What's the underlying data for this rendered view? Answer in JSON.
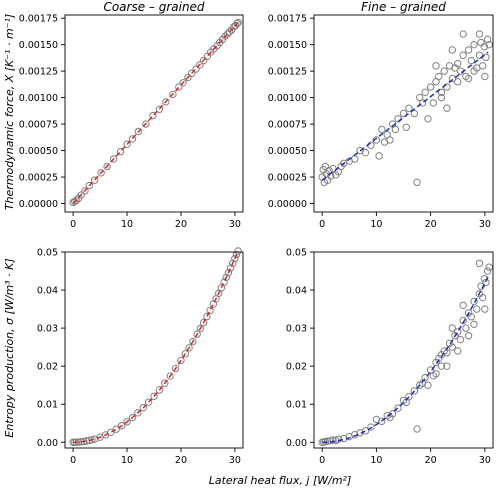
{
  "figure": {
    "ylabel_top": "Thermodynamic force, X [K⁻¹ · m⁻¹]",
    "ylabel_bottom": "Entropy production, σ [W/m³ · K]",
    "xlabel": "Lateral heat flux, j [W/m²]"
  },
  "chart_data": [
    {
      "type": "scatter",
      "title": "Coarse – grained",
      "xlim": [
        -1.5,
        31.5
      ],
      "ylim": [
        -8e-05,
        0.00178
      ],
      "xticks": [
        "0",
        "10",
        "20",
        "30"
      ],
      "xtick_values": [
        0,
        10,
        20,
        30
      ],
      "yticks": [
        "0.00000",
        "0.00025",
        "0.00050",
        "0.00075",
        "0.00100",
        "0.00125",
        "0.00150",
        "0.00175"
      ],
      "ytick_values": [
        0,
        0.00025,
        0.0005,
        0.00075,
        0.001,
        0.00125,
        0.0015,
        0.00175
      ],
      "fit": {
        "type": "linear",
        "color": "#d62728",
        "y_at_0": 0.0,
        "slope": 5.59e-05
      },
      "points_description": "tightly clustered along fit",
      "series": [
        {
          "x": [
            0.0,
            0.3,
            0.6,
            1.0,
            1.5,
            2.2,
            3.0,
            4.0,
            5.2,
            6.3,
            7.5,
            8.8,
            10.0,
            11.0,
            12.1,
            13.5,
            14.8,
            16.0,
            17.2,
            18.5,
            19.6,
            20.4,
            21.3,
            22.0,
            22.8,
            23.5,
            24.2,
            24.9,
            25.5,
            26.1,
            26.7,
            27.2,
            27.7,
            28.2,
            28.6,
            29.0,
            29.4,
            29.8,
            30.1,
            30.4,
            30.6
          ],
          "y": [
            1e-05,
            2e-05,
            3e-05,
            5e-05,
            8e-05,
            0.00012,
            0.00017,
            0.00022,
            0.00029,
            0.00035,
            0.00042,
            0.00049,
            0.00056,
            0.00061,
            0.00068,
            0.00075,
            0.00083,
            0.00089,
            0.00096,
            0.00103,
            0.0011,
            0.00114,
            0.00119,
            0.00123,
            0.00127,
            0.00131,
            0.00135,
            0.00139,
            0.00143,
            0.00146,
            0.00149,
            0.00152,
            0.00155,
            0.00158,
            0.0016,
            0.00162,
            0.00164,
            0.00167,
            0.00168,
            0.0017,
            0.00171
          ]
        }
      ]
    },
    {
      "type": "scatter",
      "title": "Fine – grained",
      "xlim": [
        -1.5,
        31.5
      ],
      "ylim": [
        -8e-05,
        0.00178
      ],
      "xticks": [
        "0",
        "10",
        "20",
        "30"
      ],
      "xtick_values": [
        0,
        10,
        20,
        30
      ],
      "yticks": [
        "0.00000",
        "0.00025",
        "0.00050",
        "0.00075",
        "0.00100",
        "0.00125",
        "0.00150",
        "0.00175"
      ],
      "ytick_values": [
        0,
        0.00025,
        0.0005,
        0.00075,
        0.001,
        0.00125,
        0.0015,
        0.00175
      ],
      "fit": {
        "type": "linear",
        "color": "#1f2fbf",
        "y_at_0": 0.00022,
        "slope": 3.95e-05
      },
      "series": [
        {
          "x": [
            0.0,
            0.2,
            0.4,
            0.6,
            0.8,
            1.0,
            1.3,
            1.6,
            2.0,
            2.5,
            3.0,
            3.5,
            4.0,
            5.0,
            6.0,
            7.0,
            8.0,
            9.0,
            10.0,
            11.0,
            12.0,
            13.0,
            14.0,
            15.0,
            16.0,
            17.0,
            17.5,
            18.0,
            19.0,
            20.0,
            20.5,
            21.0,
            21.5,
            22.0,
            22.5,
            23.0,
            23.5,
            24.0,
            24.5,
            25.0,
            25.5,
            26.0,
            26.5,
            27.0,
            27.5,
            28.0,
            28.5,
            29.0,
            29.3,
            29.6,
            29.9,
            30.2,
            30.5,
            30.8,
            25.0,
            26.0,
            27.0,
            28.0,
            29.0,
            30.0,
            23.0,
            24.0,
            21.0,
            22.0,
            19.5,
            18.5,
            15.5,
            12.5,
            13.5,
            10.5,
            11.5
          ],
          "y": [
            0.00025,
            0.00032,
            0.0002,
            0.00035,
            0.00028,
            0.00022,
            0.00031,
            0.00026,
            0.00033,
            0.00027,
            0.0003,
            0.00035,
            0.00038,
            0.0004,
            0.00042,
            0.0005,
            0.00048,
            0.00055,
            0.0006,
            0.0007,
            0.00065,
            0.00075,
            0.0008,
            0.00085,
            0.0009,
            0.00085,
            0.0002,
            0.001,
            0.00105,
            0.0011,
            0.00095,
            0.00115,
            0.0012,
            0.001,
            0.00125,
            0.0011,
            0.0013,
            0.00118,
            0.00128,
            0.00132,
            0.00125,
            0.0014,
            0.0012,
            0.00145,
            0.00135,
            0.0015,
            0.00128,
            0.0014,
            0.00152,
            0.0013,
            0.00148,
            0.00138,
            0.00155,
            0.0015,
            0.00115,
            0.0016,
            0.00118,
            0.00125,
            0.0016,
            0.0012,
            0.0009,
            0.00145,
            0.0013,
            0.00105,
            0.0008,
            0.00095,
            0.00072,
            0.0006,
            0.0007,
            0.00045,
            0.00058
          ]
        }
      ]
    },
    {
      "type": "scatter",
      "xlim": [
        -1.5,
        31.5
      ],
      "ylim": [
        -0.0015,
        0.05
      ],
      "xticks": [
        "0",
        "10",
        "20",
        "30"
      ],
      "xtick_values": [
        0,
        10,
        20,
        30
      ],
      "yticks": [
        "0.00",
        "0.01",
        "0.02",
        "0.03",
        "0.04",
        "0.05"
      ],
      "ytick_values": [
        0,
        0.01,
        0.02,
        0.03,
        0.04,
        0.05
      ],
      "fit": {
        "type": "quadratic",
        "color": "#d62728",
        "coef": 5.37e-05
      },
      "series": [
        {
          "x": [
            0.0,
            0.3,
            0.6,
            1.0,
            1.5,
            2.0,
            2.5,
            3.0,
            3.5,
            4.0,
            5.0,
            6.0,
            7.0,
            8.0,
            9.0,
            10.0,
            11.0,
            12.0,
            13.0,
            14.0,
            15.0,
            16.0,
            17.0,
            18.0,
            19.0,
            20.0,
            20.8,
            21.5,
            22.2,
            23.0,
            23.6,
            24.2,
            24.8,
            25.4,
            26.0,
            26.5,
            27.0,
            27.5,
            28.0,
            28.4,
            28.8,
            29.2,
            29.6,
            30.0,
            30.3,
            30.6
          ],
          "y": [
            0.0,
            1e-05,
            2e-05,
            5e-05,
            0.00012,
            0.00021,
            0.00034,
            0.00048,
            0.00066,
            0.00086,
            0.00134,
            0.00193,
            0.00263,
            0.00344,
            0.00435,
            0.00537,
            0.0065,
            0.00773,
            0.00908,
            0.01053,
            0.01208,
            0.01375,
            0.01552,
            0.0174,
            0.01939,
            0.02148,
            0.02323,
            0.02482,
            0.02646,
            0.0284,
            0.0299,
            0.03145,
            0.03303,
            0.03465,
            0.0363,
            0.03771,
            0.03915,
            0.0406,
            0.0421,
            0.04332,
            0.04455,
            0.04579,
            0.04705,
            0.04833,
            0.0493,
            0.05028
          ]
        }
      ]
    },
    {
      "type": "scatter",
      "xlim": [
        -1.5,
        31.5
      ],
      "ylim": [
        -0.0015,
        0.05
      ],
      "xticks": [
        "0",
        "10",
        "20",
        "30"
      ],
      "xtick_values": [
        0,
        10,
        20,
        30
      ],
      "yticks": [
        "0.00",
        "0.01",
        "0.02",
        "0.03",
        "0.04",
        "0.05"
      ],
      "ytick_values": [
        0,
        0.01,
        0.02,
        0.03,
        0.04,
        0.05
      ],
      "fit": {
        "type": "quadratic",
        "color": "#1f2fbf",
        "coef": 4.65e-05
      },
      "series": [
        {
          "x": [
            0.0,
            0.3,
            0.6,
            1.0,
            1.5,
            2.0,
            2.5,
            3.0,
            4.0,
            5.0,
            6.0,
            7.0,
            8.0,
            9.0,
            10.0,
            11.0,
            12.0,
            13.0,
            14.0,
            15.0,
            16.0,
            17.0,
            17.5,
            18.0,
            19.0,
            20.0,
            20.5,
            21.0,
            21.5,
            22.0,
            22.5,
            23.0,
            23.5,
            24.0,
            24.5,
            25.0,
            25.5,
            26.0,
            26.5,
            27.0,
            27.5,
            28.0,
            28.5,
            29.0,
            29.3,
            29.6,
            29.9,
            30.2,
            30.5,
            30.8,
            25.0,
            26.0,
            27.0,
            28.0,
            29.0,
            30.0,
            23.0,
            24.0,
            21.0,
            22.0,
            19.5,
            18.5,
            15.5,
            12.5
          ],
          "y": [
            0.0,
            0.0001,
            0.0002,
            0.0003,
            0.0004,
            0.0006,
            0.0005,
            0.0008,
            0.001,
            0.0015,
            0.002,
            0.0025,
            0.003,
            0.004,
            0.006,
            0.0055,
            0.007,
            0.0075,
            0.009,
            0.011,
            0.012,
            0.0135,
            0.0035,
            0.015,
            0.017,
            0.019,
            0.0175,
            0.021,
            0.022,
            0.02,
            0.024,
            0.0235,
            0.026,
            0.025,
            0.028,
            0.029,
            0.027,
            0.032,
            0.03,
            0.034,
            0.033,
            0.037,
            0.035,
            0.039,
            0.041,
            0.038,
            0.043,
            0.042,
            0.045,
            0.046,
            0.024,
            0.036,
            0.028,
            0.031,
            0.047,
            0.035,
            0.02,
            0.03,
            0.018,
            0.023,
            0.015,
            0.0155,
            0.0105,
            0.0065
          ]
        }
      ]
    }
  ]
}
